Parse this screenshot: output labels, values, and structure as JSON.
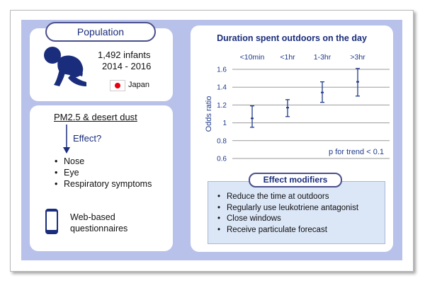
{
  "population": {
    "title": "Population",
    "infants": "1,492 infants",
    "years": "2014 - 2016",
    "country": "Japan",
    "flag_color": "#e60012"
  },
  "exposure": {
    "title": "PM2.5 & desert dust",
    "effect_label": "Effect?",
    "outcomes": [
      "Nose",
      "Eye",
      "Respiratory symptoms"
    ],
    "method": [
      "Web-based",
      "questionnaires"
    ]
  },
  "chart_data": {
    "type": "scatter",
    "title": "Duration spent outdoors on the day",
    "ylabel": "Odds ratio",
    "categories": [
      "<10min",
      "<1hr",
      "1-3hr",
      ">3hr"
    ],
    "values": [
      1.05,
      1.17,
      1.34,
      1.46
    ],
    "ci_low": [
      0.95,
      1.07,
      1.23,
      1.3
    ],
    "ci_high": [
      1.19,
      1.26,
      1.46,
      1.61
    ],
    "yticks": [
      "0.6",
      "0.8",
      "1",
      "1.2",
      "1.4",
      "1.6"
    ],
    "ylim": [
      0.6,
      1.6
    ],
    "annotation": "p for trend < 0.1",
    "color": "#1f3a8a"
  },
  "modifiers": {
    "title": "Effect modifiers",
    "items": [
      "Reduce the time at outdoors",
      "Regularly use leukotriene antagonist",
      "Close windows",
      "Receive particulate forecast"
    ]
  }
}
